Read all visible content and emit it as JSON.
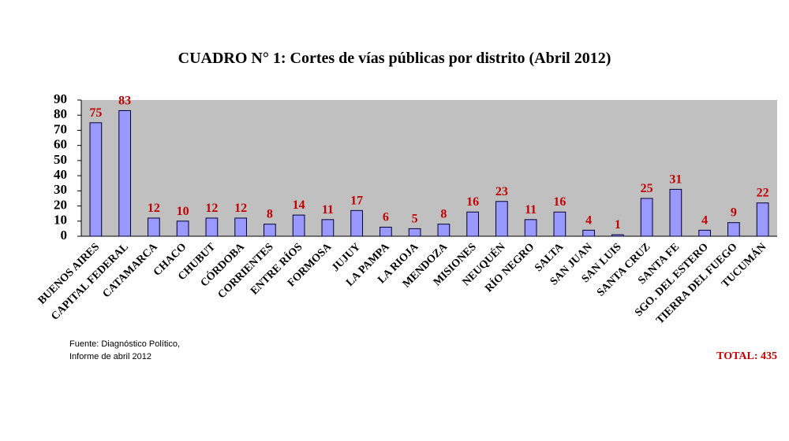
{
  "chart_data": {
    "type": "bar",
    "title": "CUADRO N° 1: Cortes de vías públicas por distrito (Abril 2012)",
    "categories": [
      "BUENOS AIRES",
      "CAPITAL FEDERAL",
      "CATAMARCA",
      "CHACO",
      "CHUBUT",
      "CÓRDOBA",
      "CORRIENTES",
      "ENTRE RÍOS",
      "FORMOSA",
      "JUJUY",
      "LA PAMPA",
      "LA RIOJA",
      "MENDOZA",
      "MISIONES",
      "NEUQUÉN",
      "RÍO NEGRO",
      "SALTA",
      "SAN JUAN",
      "SAN LUIS",
      "SANTA CRUZ",
      "SANTA FE",
      "SGO. DEL ESTERO",
      "TIERRA DEL FUEGO",
      "TUCUMÁN"
    ],
    "values": [
      75,
      83,
      12,
      10,
      12,
      12,
      8,
      14,
      11,
      17,
      6,
      5,
      8,
      16,
      23,
      11,
      16,
      4,
      1,
      25,
      31,
      4,
      9,
      22
    ],
    "color": "#9999ff",
    "label_color": "#c00000",
    "plot_background": "#c0c0c0",
    "ylim": [
      0,
      90
    ],
    "yticks": [
      0,
      10,
      20,
      30,
      40,
      50,
      60,
      70,
      80,
      90
    ],
    "source": [
      "Fuente: Diagnóstico Político,",
      "Informe de abril 2012"
    ],
    "total": "TOTAL: 435"
  }
}
